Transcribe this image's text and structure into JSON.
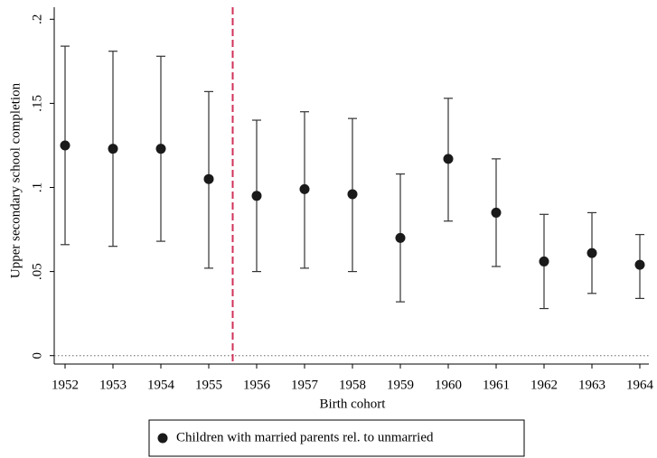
{
  "chart_data": {
    "type": "scatter",
    "xlabel": "Birth cohort",
    "ylabel": "Upper secondary school completion",
    "categories": [
      "1952",
      "1953",
      "1954",
      "1955",
      "1956",
      "1957",
      "1958",
      "1959",
      "1960",
      "1961",
      "1962",
      "1963",
      "1964"
    ],
    "series": [
      {
        "name": "Children with married parents rel. to unmarried",
        "color": "#1a1a1a",
        "values": [
          0.125,
          0.123,
          0.123,
          0.105,
          0.095,
          0.099,
          0.096,
          0.07,
          0.117,
          0.085,
          0.056,
          0.061,
          0.054
        ],
        "lower": [
          0.066,
          0.065,
          0.068,
          0.052,
          0.05,
          0.052,
          0.05,
          0.032,
          0.08,
          0.053,
          0.028,
          0.037,
          0.034
        ],
        "upper": [
          0.184,
          0.181,
          0.178,
          0.157,
          0.14,
          0.145,
          0.141,
          0.108,
          0.153,
          0.117,
          0.084,
          0.085,
          0.072
        ]
      }
    ],
    "ylim": [
      -0.005,
      0.205
    ],
    "yticks": [
      0,
      {
        "value": 0.05,
        "label": ".05"
      },
      {
        "value": 0.1,
        "label": ".1"
      },
      {
        "value": 0.15,
        "label": ".15"
      },
      {
        "value": 0.2,
        "label": ".2"
      }
    ],
    "vline": 1955.5,
    "vline_color": "#d0325a",
    "hline": 0,
    "legend": "bottom"
  }
}
